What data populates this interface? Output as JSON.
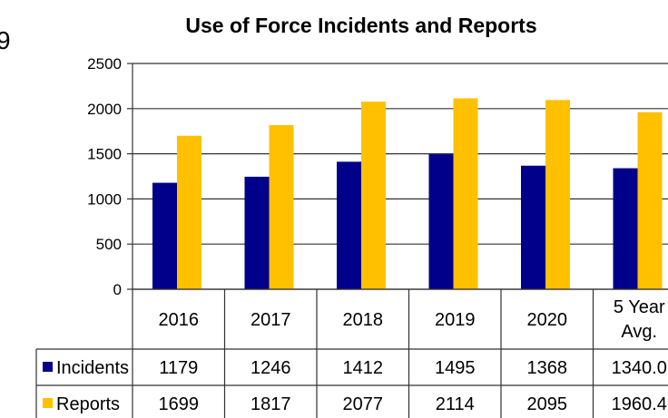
{
  "edge_fragment": "9",
  "chart_data": {
    "type": "bar",
    "title": "Use of Force Incidents and Reports",
    "categories": [
      "2016",
      "2017",
      "2018",
      "2019",
      "2020",
      "5 Year Avg."
    ],
    "category_lines": [
      [
        "2016"
      ],
      [
        "2017"
      ],
      [
        "2018"
      ],
      [
        "2019"
      ],
      [
        "2020"
      ],
      [
        "5 Year",
        "Avg."
      ]
    ],
    "series": [
      {
        "name": "Incidents",
        "color": "#00008B",
        "values": [
          1179,
          1246,
          1412,
          1495,
          1368,
          1340.0
        ],
        "labels": [
          "1179",
          "1246",
          "1412",
          "1495",
          "1368",
          "1340.0"
        ]
      },
      {
        "name": "Reports",
        "color": "#FFC000",
        "values": [
          1699,
          1817,
          2077,
          2114,
          2095,
          1960.4
        ],
        "labels": [
          "1699",
          "1817",
          "2077",
          "2114",
          "2095",
          "1960.4"
        ]
      }
    ],
    "ylim": [
      0,
      2500
    ],
    "yticks": [
      0,
      500,
      1000,
      1500,
      2000,
      2500
    ],
    "grid": true,
    "legend": "data-table"
  }
}
